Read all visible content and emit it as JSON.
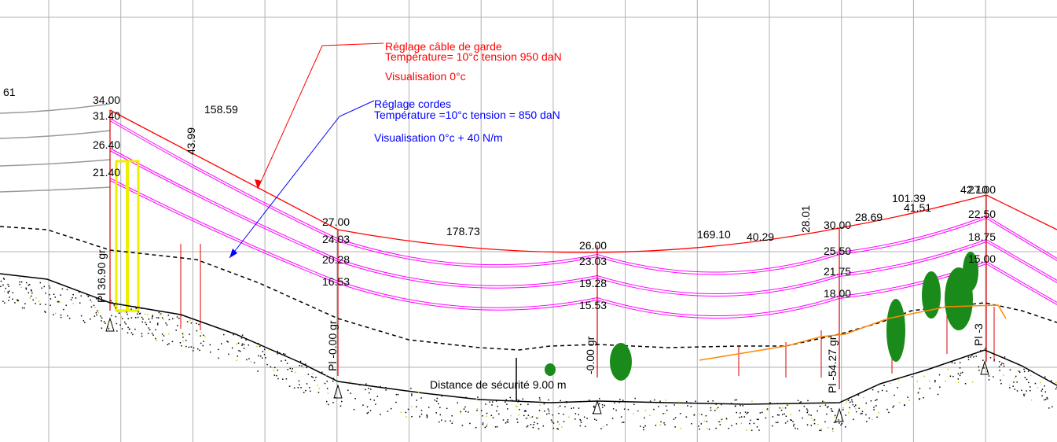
{
  "labels": [
    "Réglage câble de garde",
    "Température= 10°c tension 950 daN",
    "Visualisation 0°c",
    "Réglage cordes",
    "Température =10°c tension = 850 daN",
    "Visualisation 0°c + 40 N/m",
    "61",
    "34.00",
    "31.40",
    "26.40",
    "21.40",
    "158.59",
    "43.99",
    "27.00",
    "24.03",
    "20.28",
    "16.53",
    "178.73",
    "26.00",
    "23.03",
    "19.28",
    "15.53",
    "169.10",
    "40.29",
    "28.01",
    "30.00",
    "28.69",
    "101.39",
    "41.51",
    "42.10",
    "27.00",
    "22.50",
    "18.75",
    "15.00",
    "25.50",
    "21.75",
    "18.00",
    "Distance de sécurité 9.00 m",
    "Pl 36.90 gr",
    "Pl -0.00 gr",
    "-0.00 gr",
    "Pl -54.27 gr",
    "Pl -3"
  ]
}
